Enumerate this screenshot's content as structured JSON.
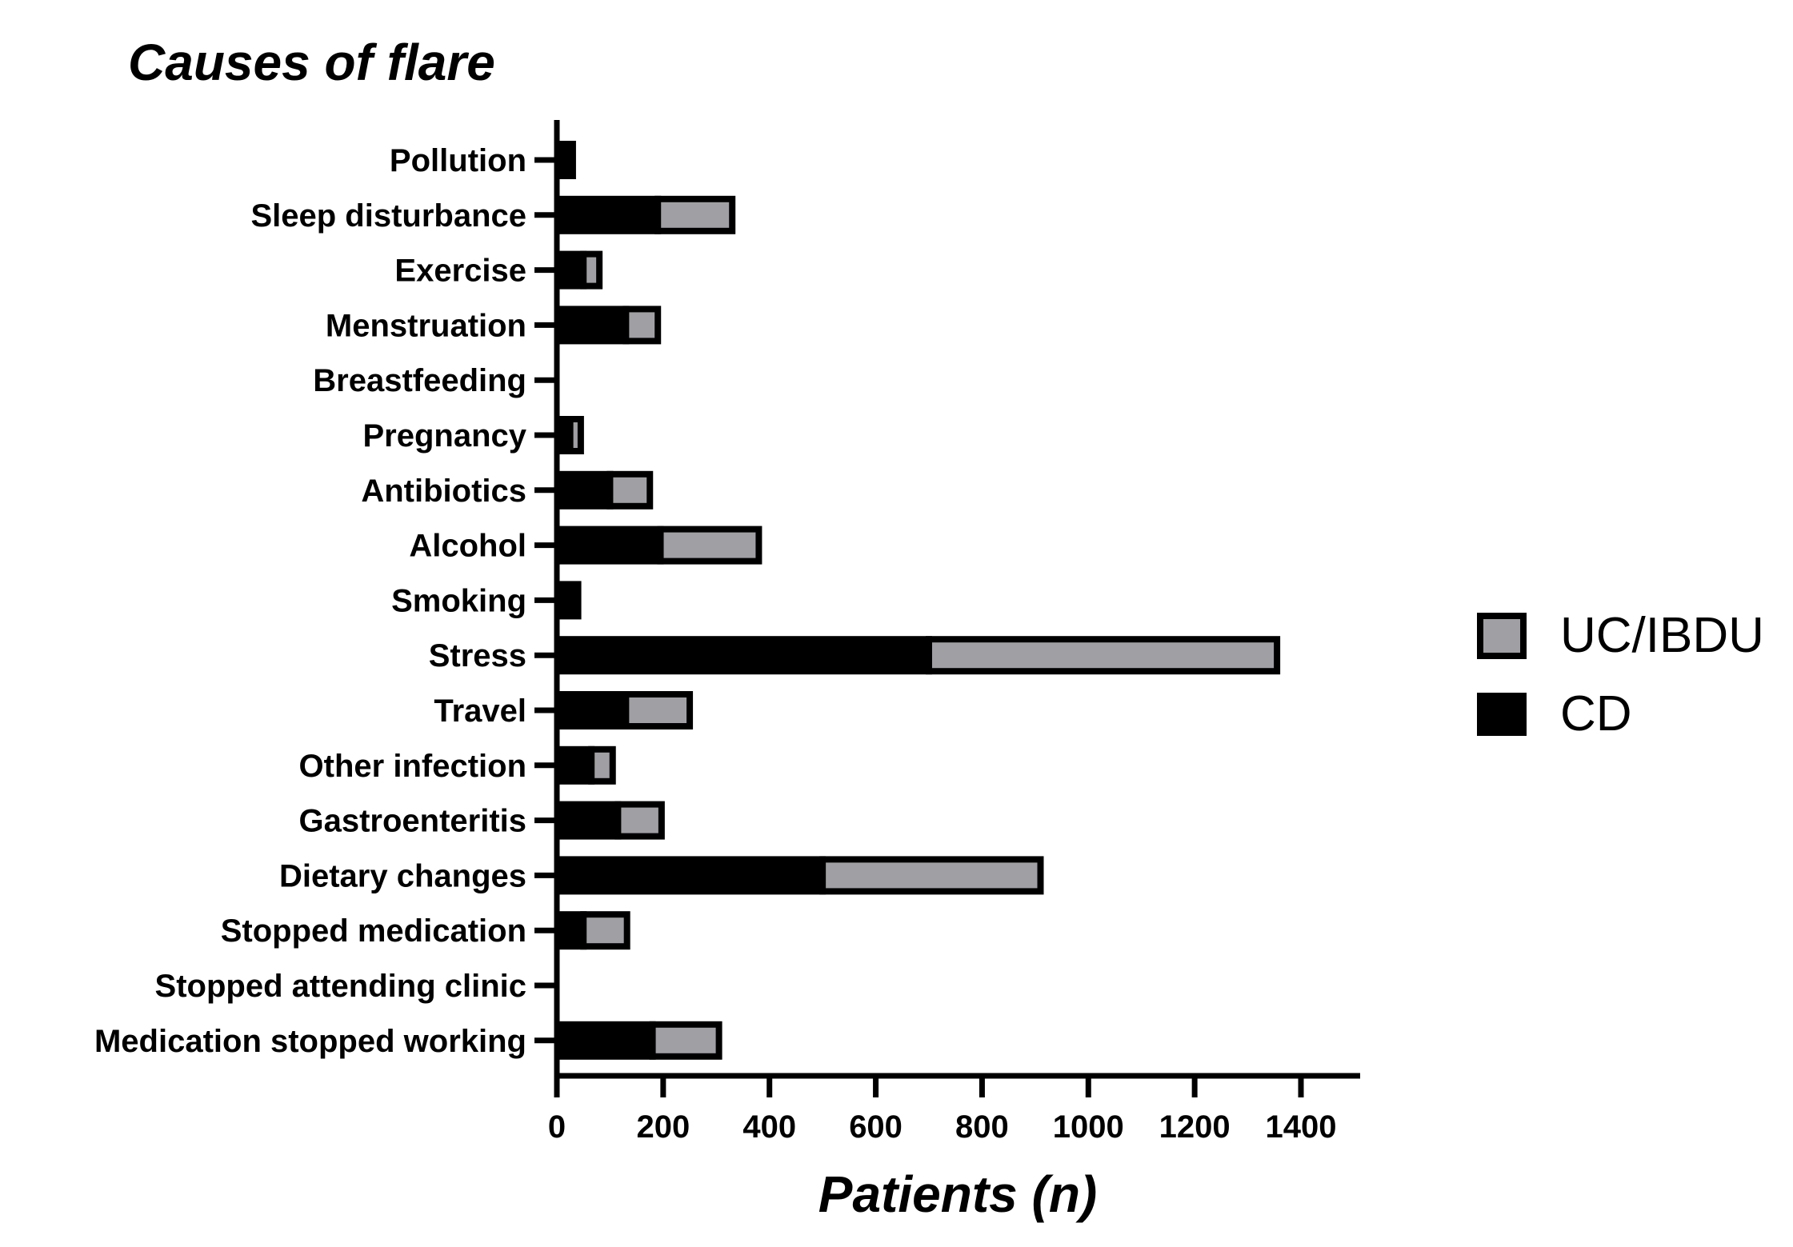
{
  "chart_data": {
    "type": "bar",
    "orientation": "horizontal",
    "stacked": true,
    "title": "Causes of flare",
    "xlabel": "Patients (n)",
    "ylabel": "",
    "xlim": [
      0,
      1500
    ],
    "xticks": [
      0,
      200,
      400,
      600,
      800,
      1000,
      1200,
      1400
    ],
    "grid": false,
    "legend_position": "right",
    "categories": [
      "Pollution",
      "Sleep disturbance",
      "Exercise",
      "Menstruation",
      "Breastfeeding",
      "Pregnancy",
      "Antibiotics",
      "Alcohol",
      "Smoking",
      "Stress",
      "Travel",
      "Other infection",
      "Gastroenteritis",
      "Dietary changes",
      "Stopped medication",
      "Stopped attending clinic",
      "Medication stopped working"
    ],
    "series": [
      {
        "name": "CD",
        "color": "#000000",
        "values": [
          30,
          190,
          50,
          130,
          0,
          25,
          100,
          195,
          40,
          700,
          130,
          65,
          115,
          500,
          50,
          0,
          180
        ]
      },
      {
        "name": "UC/IBDU",
        "color": "#a0a0a4",
        "values": [
          0,
          140,
          30,
          60,
          0,
          20,
          75,
          185,
          0,
          655,
          120,
          40,
          82,
          410,
          82,
          0,
          125
        ]
      }
    ]
  }
}
